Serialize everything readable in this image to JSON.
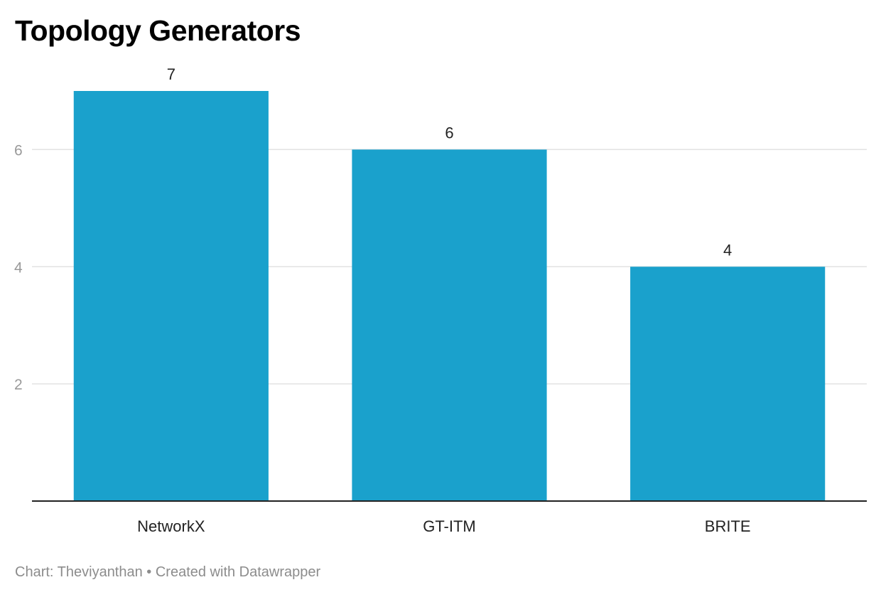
{
  "chart_data": {
    "type": "bar",
    "title": "Topology Generators",
    "categories": [
      "NetworkX",
      "GT-ITM",
      "BRITE"
    ],
    "values": [
      7,
      6,
      4
    ],
    "value_labels": [
      "7",
      "6",
      "4"
    ],
    "yticks": [
      2,
      4,
      6
    ],
    "ylim": [
      0,
      7
    ],
    "grid": true,
    "xlabel": "",
    "ylabel": "",
    "bar_color": "#1aa1cc",
    "grid_color": "#e2e2e2",
    "baseline_color": "#222222"
  },
  "footer": {
    "credit": "Chart: Theviyanthan • Created with Datawrapper"
  }
}
